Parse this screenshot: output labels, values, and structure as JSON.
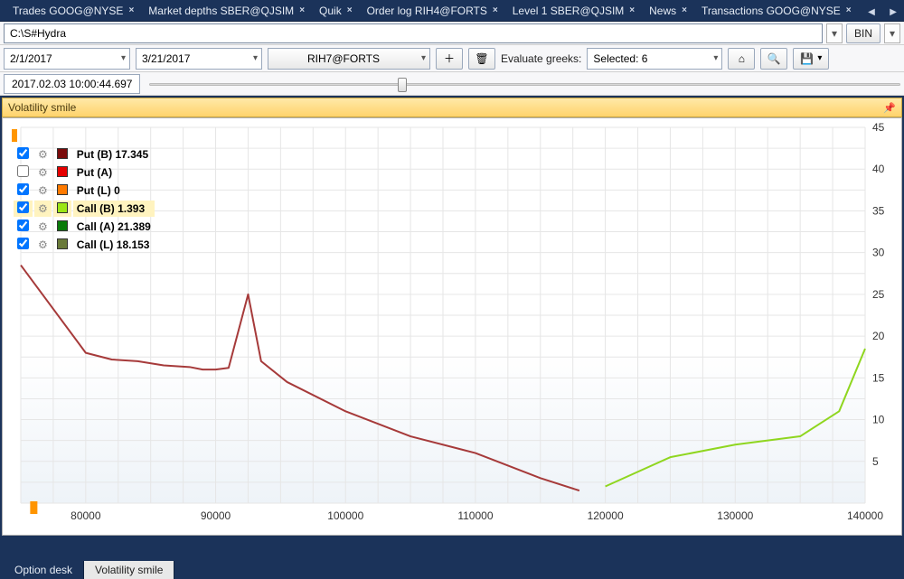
{
  "tabs": {
    "items": [
      {
        "label": "Trades GOOG@NYSE"
      },
      {
        "label": "Market depths SBER@QJSIM"
      },
      {
        "label": "Quik"
      },
      {
        "label": "Order log RIH4@FORTS"
      },
      {
        "label": "Level 1 SBER@QJSIM"
      },
      {
        "label": "News"
      },
      {
        "label": "Transactions GOOG@NYSE"
      }
    ]
  },
  "pathbar": {
    "path_value": "C:\\S#Hydra",
    "bin_label": "BIN"
  },
  "controls": {
    "date_from": "2/1/2017",
    "date_to": "3/21/2017",
    "futures_button": "RIH7@FORTS",
    "greeks_label": "Evaluate greeks:",
    "greeks_selected": "Selected: 6"
  },
  "timerow": {
    "timestamp": "2017.02.03 10:00:44.697",
    "slider_position_pct": 33
  },
  "panel": {
    "title": "Volatility smile"
  },
  "legend": {
    "series": [
      {
        "checked": true,
        "color": "#7a0b0b",
        "label": "Put (B)",
        "value": "17.345"
      },
      {
        "checked": false,
        "color": "#e60000",
        "label": "Put (A)",
        "value": ""
      },
      {
        "checked": true,
        "color": "#ff7a00",
        "label": "Put (L)",
        "value": "0"
      },
      {
        "checked": true,
        "color": "#9be615",
        "label": "Call (B)",
        "value": "1.393",
        "row_bg": "#fff3bf"
      },
      {
        "checked": true,
        "color": "#0a7a0a",
        "label": "Call (A)",
        "value": "21.389"
      },
      {
        "checked": true,
        "color": "#6a7a3a",
        "label": "Call (L)",
        "value": "18.153"
      }
    ]
  },
  "chart": {
    "type": "line",
    "background_color": "#ffffff",
    "grid_color": "#e6e6e6",
    "axis_color": "#888888",
    "xlim": [
      75000,
      140000
    ],
    "ylim": [
      0,
      45
    ],
    "xticks": [
      80000,
      90000,
      100000,
      110000,
      120000,
      130000,
      140000
    ],
    "yticks": [
      5,
      10,
      15,
      20,
      25,
      30,
      35,
      40,
      45
    ],
    "tick_fontsize": 11,
    "x_tick_format": "plain_int",
    "marker_x": 76000,
    "marker_color": "#ff9500",
    "series": [
      {
        "name": "Put (B)",
        "color": "#a63a3a",
        "width": 2,
        "points": [
          [
            75000,
            28.5
          ],
          [
            80000,
            18.0
          ],
          [
            82000,
            17.2
          ],
          [
            84000,
            17.0
          ],
          [
            86000,
            16.5
          ],
          [
            88000,
            16.3
          ],
          [
            89000,
            16.0
          ],
          [
            90000,
            16.0
          ],
          [
            91000,
            16.2
          ],
          [
            92500,
            25.0
          ],
          [
            93500,
            17.0
          ],
          [
            95500,
            14.5
          ],
          [
            100000,
            11.0
          ],
          [
            105000,
            8.0
          ],
          [
            110000,
            6.0
          ],
          [
            115000,
            3.0
          ],
          [
            118000,
            1.5
          ]
        ]
      },
      {
        "name": "Call (B)",
        "color": "#8fd61f",
        "width": 2,
        "points": [
          [
            120000,
            2.0
          ],
          [
            125000,
            5.5
          ],
          [
            130000,
            7.0
          ],
          [
            135000,
            8.0
          ],
          [
            138000,
            11.0
          ],
          [
            140000,
            18.5
          ]
        ]
      }
    ]
  },
  "bottom_tabs": {
    "items": [
      {
        "label": "Option desk",
        "active": false
      },
      {
        "label": "Volatility smile",
        "active": true
      }
    ]
  }
}
